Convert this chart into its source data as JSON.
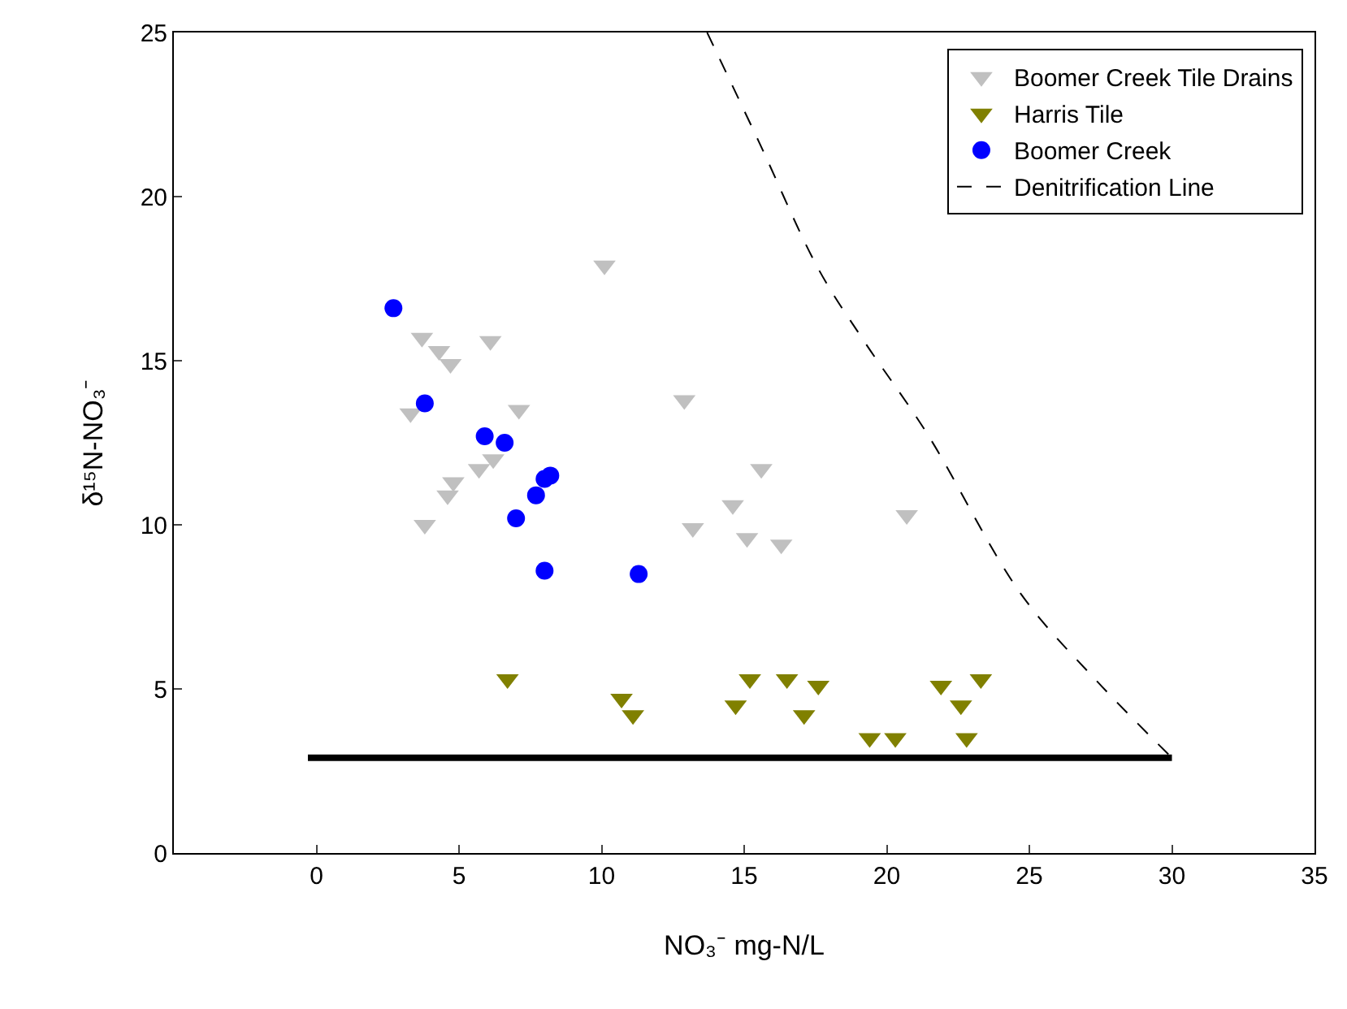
{
  "chart_data": {
    "type": "scatter",
    "xlabel": "NO₃⁻ mg-N/L",
    "ylabel": "δ¹⁵N-NO₃⁻",
    "xlim": [
      -5,
      35
    ],
    "xticks": [
      0,
      5,
      10,
      15,
      20,
      25,
      30,
      35
    ],
    "ylim": [
      0,
      25
    ],
    "yticks": [
      0,
      5,
      10,
      15,
      20,
      25
    ],
    "legend": "top right",
    "series": [
      {
        "name": "Boomer Creek Tile Drains",
        "marker": "triangle",
        "color": "#c0c0c0",
        "x": [
          10.1,
          3.7,
          4.3,
          4.7,
          6.1,
          3.3,
          7.1,
          6.2,
          5.7,
          4.8,
          4.6,
          3.8,
          12.9,
          15.6,
          14.6,
          13.2,
          15.1,
          16.3,
          20.7
        ],
        "values": [
          17.9,
          15.7,
          15.3,
          14.9,
          15.6,
          13.4,
          13.5,
          12.0,
          11.7,
          11.3,
          10.9,
          10.0,
          13.8,
          11.7,
          10.6,
          9.9,
          9.6,
          9.4,
          10.3
        ]
      },
      {
        "name": "Harris Tile",
        "marker": "triangle",
        "color": "#808000",
        "x": [
          6.7,
          10.7,
          11.1,
          14.7,
          15.2,
          16.5,
          17.1,
          17.6,
          19.4,
          20.3,
          21.9,
          23.3,
          22.6,
          22.8
        ],
        "values": [
          5.3,
          4.7,
          4.2,
          4.5,
          5.3,
          5.3,
          4.2,
          5.1,
          3.5,
          3.5,
          5.1,
          5.3,
          4.5,
          3.5
        ]
      },
      {
        "name": "Boomer Creek",
        "marker": "circle",
        "color": "#0000ff",
        "x": [
          2.7,
          3.8,
          5.9,
          6.6,
          8.2,
          8.0,
          7.7,
          7.0,
          8.0,
          11.3
        ],
        "values": [
          16.6,
          13.7,
          12.7,
          12.5,
          11.5,
          11.4,
          10.9,
          10.2,
          8.6,
          8.5
        ]
      },
      {
        "name": "Denitrification Line",
        "type": "line",
        "line_style": "dashed",
        "marker": "none",
        "color": "#000000",
        "x": [
          13.7,
          15.5,
          17.6,
          19.2,
          21.4,
          24.7,
          27.3,
          30.0
        ],
        "values": [
          25.0,
          21.7,
          17.8,
          15.6,
          12.8,
          7.9,
          5.3,
          2.9
        ]
      },
      {
        "type": "line",
        "line_style": "solid",
        "marker": "none",
        "color": "#000000",
        "x": [
          -0.3,
          30.0
        ],
        "values": [
          2.9,
          2.9
        ]
      }
    ]
  }
}
